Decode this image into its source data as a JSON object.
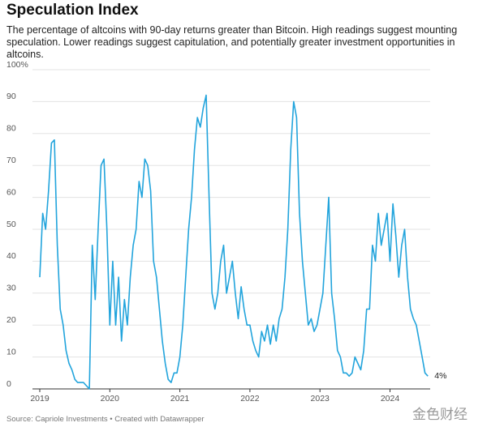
{
  "chart_data": {
    "type": "line",
    "title": "Speculation Index",
    "subtitle": "The percentage of altcoins with 90-day returns greater than Bitcoin. High readings suggest mounting speculation. Lower readings suggest capitulation, and potentially greater investment opportunities in altcoins.",
    "source": "Source: Capriole Investments • Created with Datawrapper",
    "watermark": "金色财经",
    "categories": [
      "2019",
      null,
      null,
      null,
      null,
      null,
      null,
      null,
      null,
      null,
      null,
      null,
      null,
      null,
      null,
      null,
      null,
      null,
      null,
      null,
      null,
      null,
      null,
      null,
      "2020",
      null,
      null,
      null,
      null,
      null,
      null,
      null,
      null,
      null,
      null,
      null,
      null,
      null,
      null,
      null,
      null,
      null,
      null,
      null,
      null,
      null,
      null,
      null,
      "2021",
      null,
      null,
      null,
      null,
      null,
      null,
      null,
      null,
      null,
      null,
      null,
      null,
      null,
      null,
      null,
      null,
      null,
      null,
      null,
      null,
      null,
      null,
      null,
      "2022",
      null,
      null,
      null,
      null,
      null,
      null,
      null,
      null,
      null,
      null,
      null,
      null,
      null,
      null,
      null,
      null,
      null,
      null,
      null,
      null,
      null,
      null,
      null,
      "2023",
      null,
      null,
      null,
      null,
      null,
      null,
      null,
      null,
      null,
      null,
      null,
      null,
      null,
      null,
      null,
      null,
      null,
      null,
      null,
      null,
      null,
      null,
      null,
      "2024",
      null,
      null,
      null,
      null,
      null,
      null,
      null,
      null,
      null,
      null,
      null,
      null,
      null
    ],
    "series": [
      {
        "color": "#22a4dc",
        "values": [
          35,
          55,
          50,
          62,
          77,
          78,
          45,
          25,
          20,
          12,
          8,
          6,
          3,
          2,
          2,
          2,
          1,
          0,
          45,
          28,
          50,
          70,
          72,
          50,
          20,
          40,
          20,
          35,
          15,
          28,
          20,
          35,
          45,
          50,
          65,
          60,
          72,
          70,
          62,
          40,
          35,
          25,
          15,
          8,
          3,
          2,
          5,
          5,
          10,
          20,
          35,
          50,
          60,
          75,
          85,
          82,
          88,
          92,
          60,
          30,
          25,
          30,
          40,
          45,
          30,
          35,
          40,
          30,
          22,
          32,
          25,
          20,
          20,
          15,
          12,
          10,
          18,
          15,
          20,
          14,
          20,
          15,
          22,
          25,
          35,
          50,
          75,
          90,
          85,
          55,
          40,
          30,
          20,
          22,
          18,
          20,
          25,
          30,
          45,
          60,
          30,
          22,
          12,
          10,
          5,
          5,
          4,
          5,
          10,
          8,
          6,
          12,
          25,
          25,
          45,
          40,
          55,
          45,
          50,
          55,
          40,
          58,
          48,
          35,
          45,
          50,
          35,
          25,
          22,
          20,
          15,
          10,
          5,
          4
        ],
        "value_labels": [
          null,
          null,
          null,
          null,
          null,
          null,
          null,
          null,
          null,
          null,
          null,
          null,
          null,
          null,
          null,
          null,
          null,
          null,
          null,
          null,
          null,
          null,
          null,
          null,
          null,
          null,
          null,
          null,
          null,
          null,
          null,
          null,
          null,
          null,
          null,
          null,
          null,
          null,
          null,
          null,
          null,
          null,
          null,
          null,
          null,
          null,
          null,
          null,
          null,
          null,
          null,
          null,
          null,
          null,
          null,
          null,
          null,
          null,
          null,
          null,
          null,
          null,
          null,
          null,
          null,
          null,
          null,
          null,
          null,
          null,
          null,
          null,
          null,
          null,
          null,
          null,
          null,
          null,
          null,
          null,
          null,
          null,
          null,
          null,
          null,
          null,
          null,
          null,
          null,
          null,
          null,
          null,
          null,
          null,
          null,
          null,
          null,
          null,
          null,
          null,
          null,
          null,
          null,
          null,
          null,
          null,
          null,
          null,
          null,
          null,
          null,
          null,
          null,
          null,
          null,
          null,
          null,
          null,
          null,
          null,
          null,
          null,
          null,
          null,
          null,
          null,
          null,
          null,
          null,
          null,
          null,
          null,
          null,
          "4%"
        ]
      }
    ],
    "ylim": [
      0,
      100
    ],
    "yticks": [
      0,
      10,
      20,
      30,
      40,
      50,
      60,
      70,
      80,
      90,
      {
        "value": 100,
        "label": "100%"
      }
    ],
    "grid": true
  }
}
